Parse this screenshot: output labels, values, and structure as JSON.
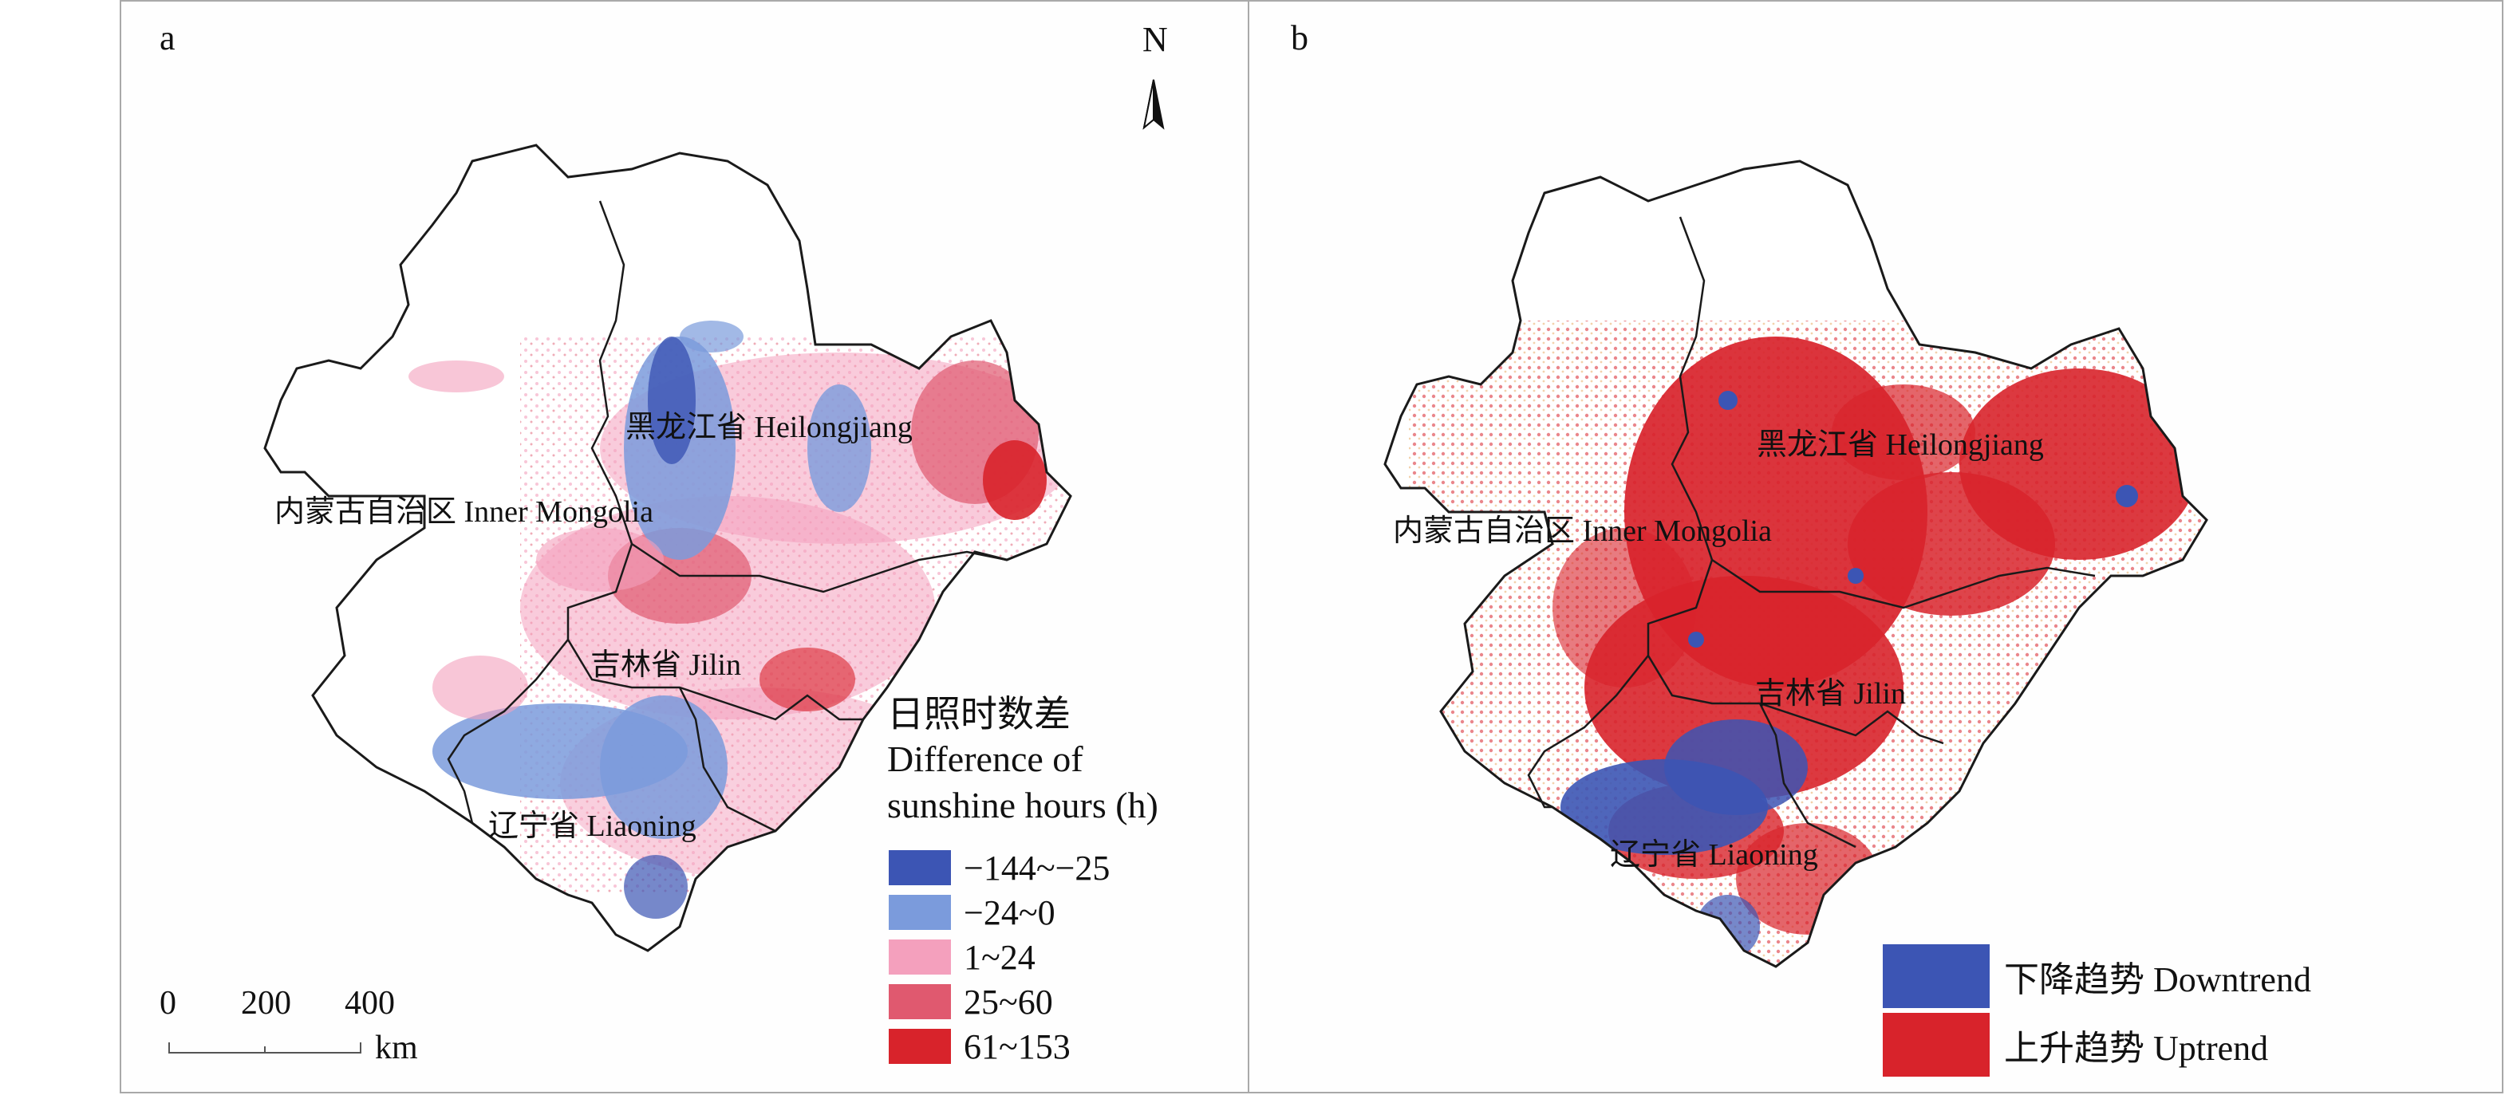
{
  "panel_a": {
    "label": "a",
    "north": "N",
    "places": {
      "heilongjiang": "黑龙江省 Heilongjiang",
      "inner_mongolia": "内蒙古自治区 Inner Mongolia",
      "jilin": "吉林省 Jilin",
      "liaoning": "辽宁省 Liaoning"
    },
    "legend": {
      "title_zh": "日照时数差",
      "title_en_1": "Difference of",
      "title_en_2": "sunshine hours (h)",
      "items": [
        {
          "label": "−144~−25",
          "color": "#3c55b4"
        },
        {
          "label": "−24~0",
          "color": "#7b9bdc"
        },
        {
          "label": "1~24",
          "color": "#f4a0bd"
        },
        {
          "label": "25~60",
          "color": "#e0596f"
        },
        {
          "label": "61~153",
          "color": "#d8232b"
        }
      ]
    },
    "scale": {
      "ticks": [
        "0",
        "200",
        "400"
      ],
      "unit": "km"
    }
  },
  "panel_b": {
    "label": "b",
    "places": {
      "heilongjiang": "黑龙江省 Heilongjiang",
      "inner_mongolia": "内蒙古自治区 Inner Mongolia",
      "jilin": "吉林省 Jilin",
      "liaoning": "辽宁省 Liaoning"
    },
    "legend": {
      "items": [
        {
          "label": "下降趋势 Downtrend",
          "color": "#3c55b4"
        },
        {
          "label": "上升趋势 Uptrend",
          "color": "#d8232b"
        }
      ]
    }
  }
}
